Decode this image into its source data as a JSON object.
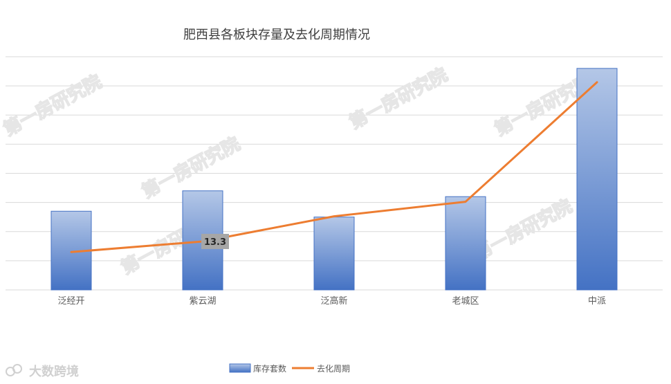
{
  "chart_data": {
    "type": "bar",
    "title": "肥西县各板块存量及去化周期情况",
    "categories": [
      "泛经开",
      "紫云湖",
      "泛高新",
      "老城区",
      "中派"
    ],
    "series": [
      {
        "name": "库存套数",
        "kind": "bar",
        "values": [
          2.7,
          3.4,
          2.5,
          3.2,
          7.6
        ]
      },
      {
        "name": "去化周期",
        "kind": "line",
        "values": [
          10.4,
          13.3,
          20.2,
          24.2,
          57.0
        ]
      }
    ],
    "data_labels": [
      {
        "series": "去化周期",
        "category": "紫云湖",
        "text": "13.3"
      }
    ],
    "grid": true,
    "legend": "bottom",
    "colors": {
      "bar_top": "#b4c7e7",
      "bar_bottom": "#4472c4",
      "bar_edge": "#4472c4",
      "line": "#ed7d31",
      "grid": "#d9d9d9",
      "label_bg": "#a6a6a6"
    }
  },
  "watermarks": [
    "第一房研究院",
    "大数跨境"
  ]
}
